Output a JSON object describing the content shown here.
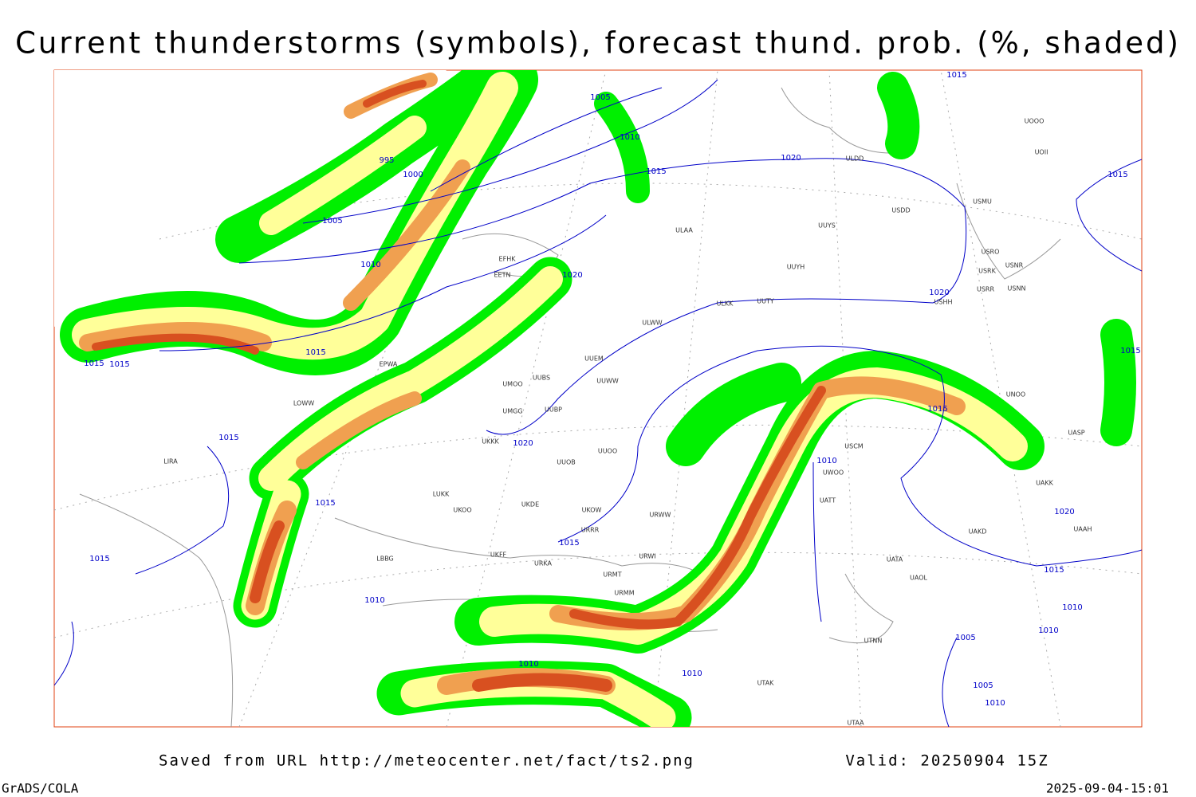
{
  "header": {
    "title": "Current thunderstorms (symbols), forecast thund. prob. (%, shaded)"
  },
  "footer": {
    "source": "Saved from URL http://meteocenter.net/fact/ts2.png",
    "valid": "Valid: 20250904 15Z",
    "software": "GrADS/COLA",
    "timestamp": "2025-09-04-15:01"
  },
  "isobar_labels": [
    "1015",
    "1005",
    "1010",
    "995",
    "1000",
    "1015",
    "1020",
    "1015",
    "1005",
    "1010",
    "1020",
    "1020",
    "1015",
    "1015",
    "1015",
    "1015",
    "1015",
    "1020",
    "1015",
    "1010",
    "1015",
    "1020",
    "1015",
    "1015",
    "1015",
    "1010",
    "1010",
    "1010",
    "1005",
    "1010",
    "1010",
    "1005",
    "1010"
  ],
  "stations": [
    "ULAA",
    "UUYS",
    "UUYH",
    "ULKK",
    "UUTY",
    "ULWW",
    "UUEM",
    "UUWW",
    "UUBS",
    "UMOO",
    "UMGG",
    "UUBP",
    "UKKK",
    "UUOO",
    "UUOB",
    "LUKK",
    "UKOO",
    "UKDE",
    "UKOW",
    "URRR",
    "URWW",
    "URWI",
    "URMT",
    "URMM",
    "URKA",
    "UTAK",
    "UTAA",
    "UTNN",
    "UATA",
    "UAOL",
    "UAKD",
    "UAAH",
    "USCM",
    "UWOO",
    "UATT",
    "USDD",
    "USMU",
    "USRO",
    "USRK",
    "USNR",
    "USRR",
    "USNN",
    "USHH",
    "UOOO",
    "UOII",
    "ULDD",
    "UNOO",
    "UASP",
    "UAKK",
    "EFHK",
    "EETN",
    "EPWA",
    "LOWW",
    "LIRA",
    "LBBG",
    "UKFF"
  ]
}
